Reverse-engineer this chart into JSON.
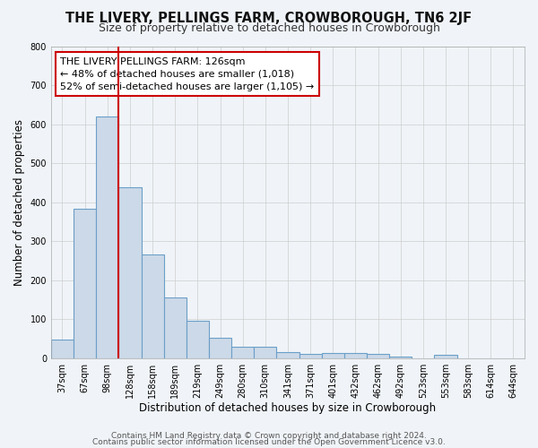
{
  "title": "THE LIVERY, PELLINGS FARM, CROWBOROUGH, TN6 2JF",
  "subtitle": "Size of property relative to detached houses in Crowborough",
  "xlabel": "Distribution of detached houses by size in Crowborough",
  "ylabel": "Number of detached properties",
  "bar_labels": [
    "37sqm",
    "67sqm",
    "98sqm",
    "128sqm",
    "158sqm",
    "189sqm",
    "219sqm",
    "249sqm",
    "280sqm",
    "310sqm",
    "341sqm",
    "371sqm",
    "401sqm",
    "432sqm",
    "462sqm",
    "492sqm",
    "523sqm",
    "553sqm",
    "583sqm",
    "614sqm",
    "644sqm"
  ],
  "bar_values": [
    47,
    383,
    620,
    437,
    265,
    155,
    95,
    52,
    30,
    30,
    15,
    10,
    12,
    12,
    10,
    5,
    0,
    8,
    0,
    0,
    0
  ],
  "bar_color": "#ccd9e8",
  "bar_edge_color": "#6b9fc8",
  "bar_edge_width": 0.8,
  "grid_color": "#cccccc",
  "background_color": "#f0f4f8",
  "plot_background": "#f0f4f8",
  "red_line_x": 2.5,
  "annotation_text": "THE LIVERY PELLINGS FARM: 126sqm\n← 48% of detached houses are smaller (1,018)\n52% of semi-detached houses are larger (1,105) →",
  "annotation_box_color": "#ffffff",
  "annotation_box_edge": "#cc0000",
  "red_line_color": "#cc0000",
  "ylim": [
    0,
    800
  ],
  "yticks": [
    0,
    100,
    200,
    300,
    400,
    500,
    600,
    700,
    800
  ],
  "footer_line1": "Contains HM Land Registry data © Crown copyright and database right 2024.",
  "footer_line2": "Contains public sector information licensed under the Open Government Licence v3.0.",
  "title_fontsize": 10.5,
  "subtitle_fontsize": 9,
  "axis_label_fontsize": 8.5,
  "tick_fontsize": 7,
  "annotation_fontsize": 8,
  "footer_fontsize": 6.5
}
